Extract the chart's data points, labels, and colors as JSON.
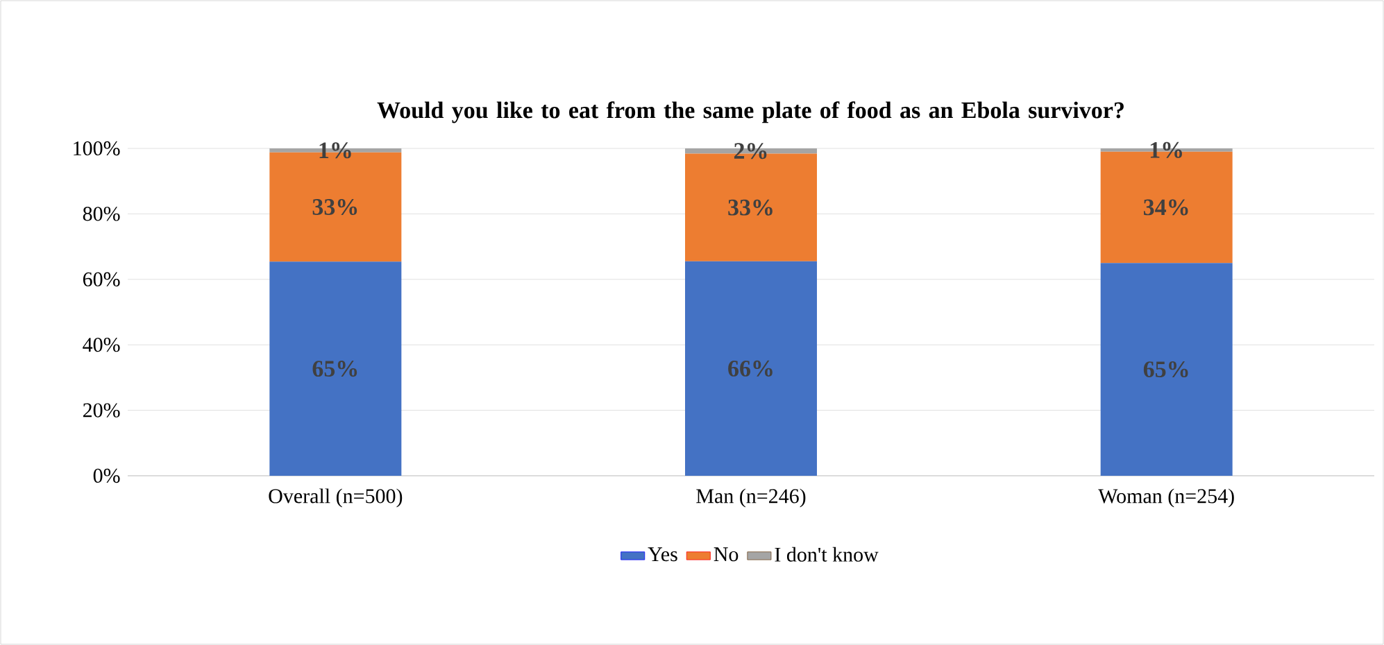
{
  "chart_data": {
    "type": "bar",
    "stacked": true,
    "title": "Would you like to eat from the same plate of food as an Ebola survivor?",
    "categories": [
      "Overall (n=500)",
      "Man (n=246)",
      "Woman (n=254)"
    ],
    "series": [
      {
        "name": "Yes",
        "color": "#4472c4",
        "values": [
          65.4,
          65.5,
          65
        ],
        "value_labels": [
          "65%",
          "66%",
          "65%"
        ]
      },
      {
        "name": "No",
        "color": "#ed7d31",
        "values": [
          33.4,
          32.9,
          34
        ],
        "value_labels": [
          "33%",
          "33%",
          "34%"
        ]
      },
      {
        "name": "I don't know",
        "color": "#a5a5a5",
        "values": [
          1.2,
          1.6,
          1
        ],
        "value_labels": [
          "1%",
          "2%",
          "1%"
        ]
      }
    ],
    "ylim": [
      0,
      100
    ],
    "yticks": [
      {
        "value": 0,
        "label": "0%"
      },
      {
        "value": 20,
        "label": "20%"
      },
      {
        "value": 40,
        "label": "40%"
      },
      {
        "value": 60,
        "label": "60%"
      },
      {
        "value": 80,
        "label": "80%"
      },
      {
        "value": 100,
        "label": "100%"
      }
    ],
    "grid": "y",
    "legend": "bottom"
  }
}
